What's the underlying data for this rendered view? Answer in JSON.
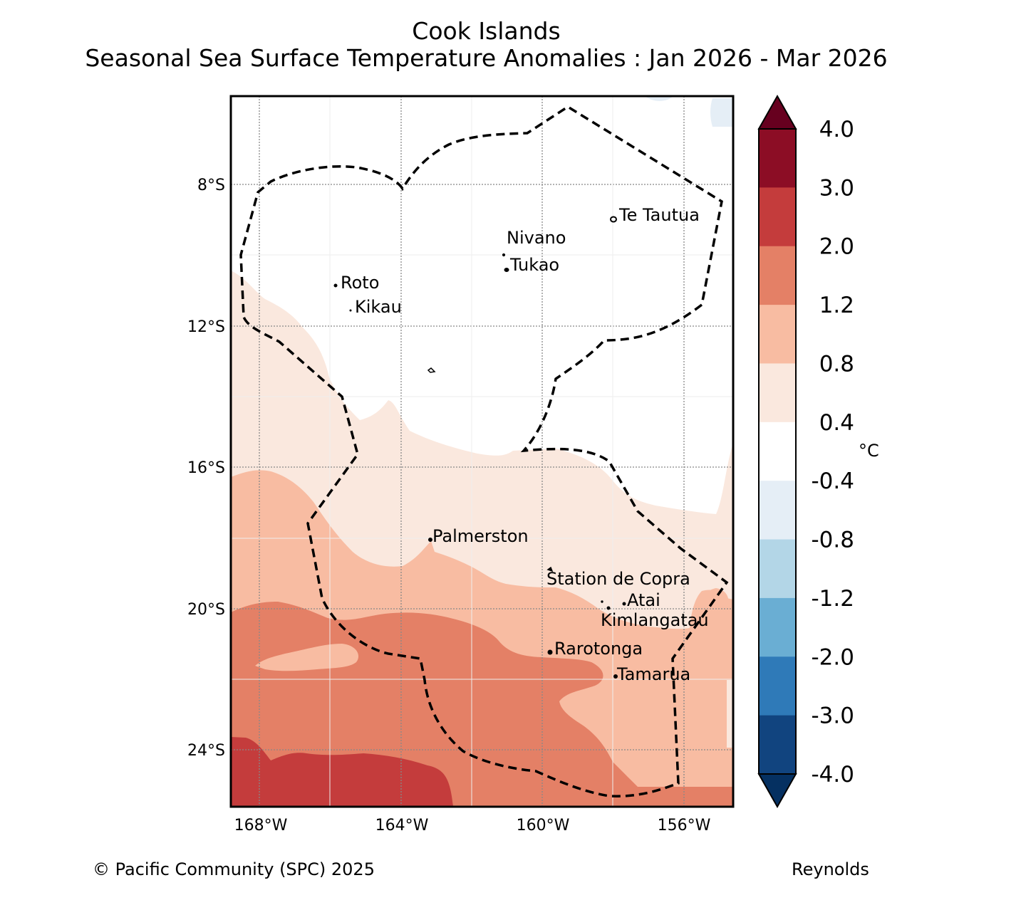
{
  "title": {
    "line1": "Cook Islands",
    "line2": "Seasonal Sea Surface Temperature Anomalies : Jan 2026 - Mar 2026"
  },
  "map": {
    "lat_ticks": [
      "8°S",
      "12°S",
      "16°S",
      "20°S",
      "24°S"
    ],
    "lon_ticks": [
      "168°W",
      "164°W",
      "160°W",
      "156°W"
    ],
    "places": [
      {
        "name": "Te Tautua"
      },
      {
        "name": "Nivano"
      },
      {
        "name": "Tukao"
      },
      {
        "name": "Roto"
      },
      {
        "name": "Kikau"
      },
      {
        "name": "Palmerston"
      },
      {
        "name": "Station de Copra"
      },
      {
        "name": "Atai"
      },
      {
        "name": "Kimlangatau"
      },
      {
        "name": "Rarotonga"
      },
      {
        "name": "Tamarua"
      }
    ],
    "unit": "°C"
  },
  "colorbar": {
    "labels": [
      "4.0",
      "3.0",
      "2.0",
      "1.2",
      "0.8",
      "0.4",
      "-0.4",
      "-0.8",
      "-1.2",
      "-2.0",
      "-3.0",
      "-4.0"
    ],
    "colors": [
      "#67001f",
      "#8c0d25",
      "#c43c3c",
      "#e48066",
      "#f8bca2",
      "#fae8de",
      "#ffffff",
      "#e5eef6",
      "#b3d6e7",
      "#6aaed3",
      "#2f7ab8",
      "#11447f",
      "#053061"
    ]
  },
  "footer": {
    "copyright": "© Pacific Community (SPC) 2025",
    "source": "Reynolds"
  }
}
